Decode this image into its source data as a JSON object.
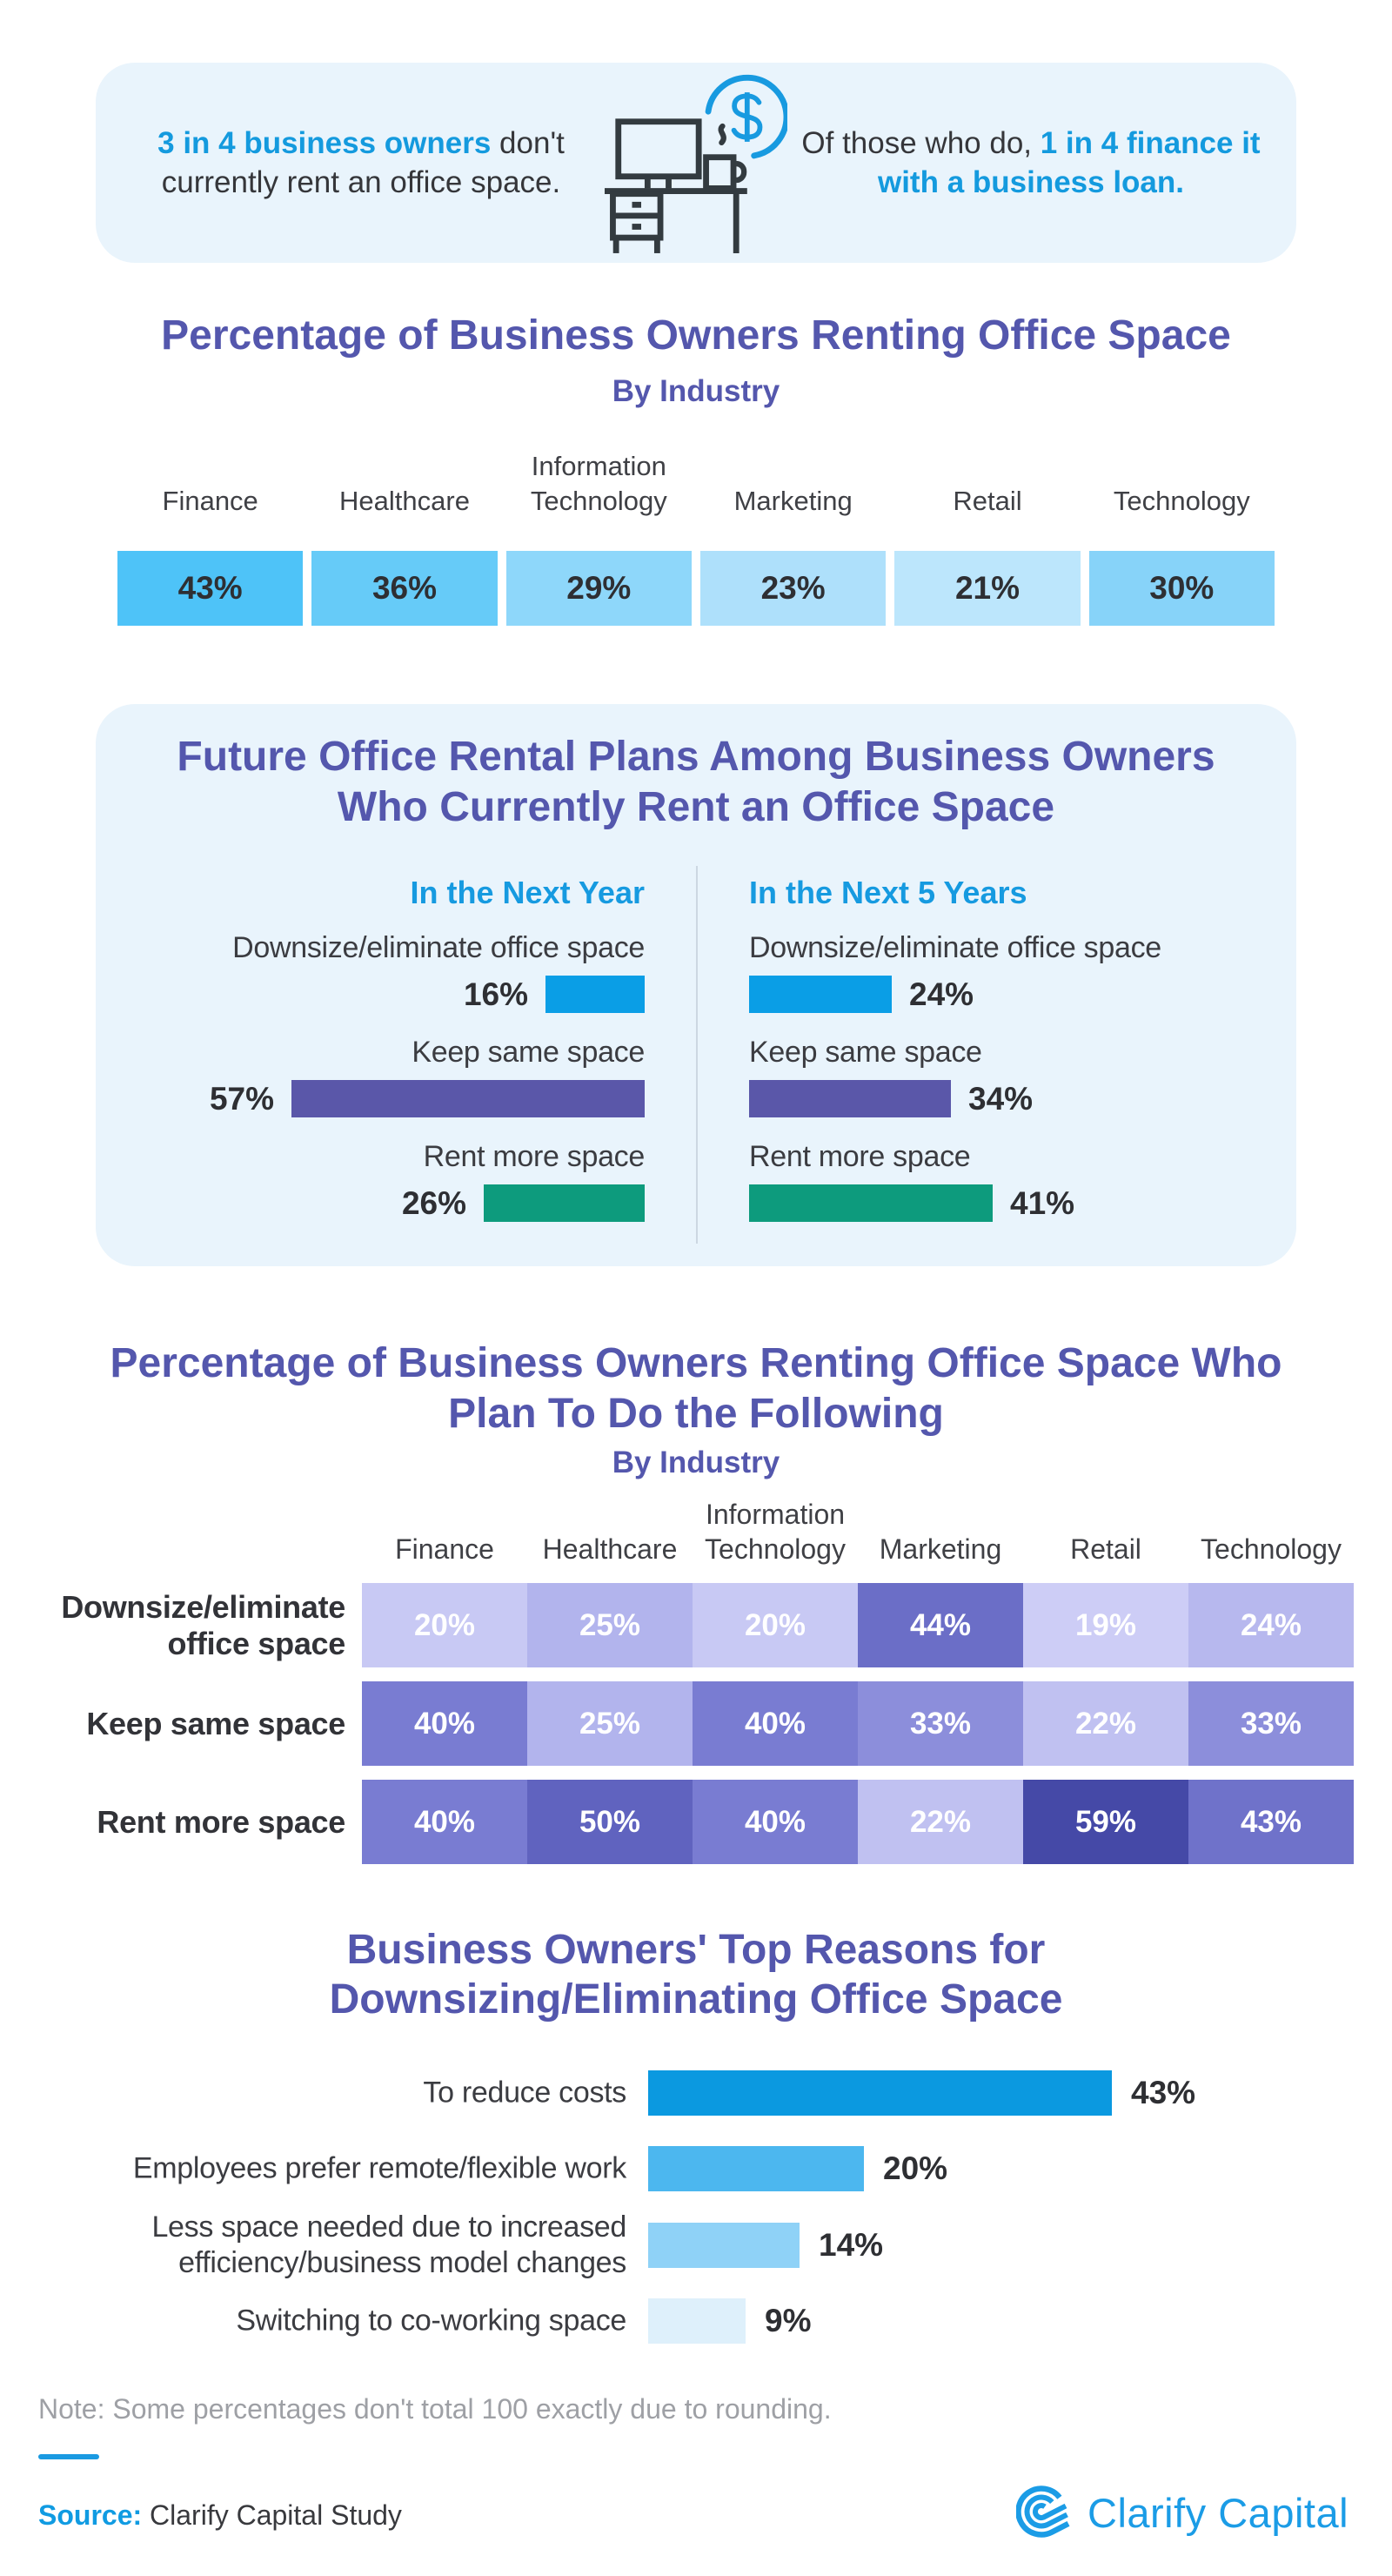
{
  "page": {
    "background": "#ffffff",
    "accent_blue": "#149ade",
    "title_purple": "#5457ad"
  },
  "banner": {
    "bg": "#e9f4fc",
    "icon": "desk-computer-money-icon",
    "left": {
      "highlight": "3 in 4 business owners",
      "rest_line1": " don't",
      "line2": "currently rent an office space."
    },
    "right": {
      "prefix": "Of those who do, ",
      "highlight_line1": "1 in 4 finance it",
      "highlight_line2": "with a business loan."
    }
  },
  "section_industry": {
    "title": "Percentage of Business Owners Renting Office Space",
    "subtitle": "By Industry",
    "items": [
      {
        "label": "Finance",
        "value": 43,
        "value_label": "43%",
        "color": "#4ec3f8"
      },
      {
        "label": "Healthcare",
        "value": 36,
        "value_label": "36%",
        "color": "#66cbf8"
      },
      {
        "label": "Information Technology",
        "value": 29,
        "value_label": "29%",
        "color": "#8ed7fa"
      },
      {
        "label": "Marketing",
        "value": 23,
        "value_label": "23%",
        "color": "#aee0fb"
      },
      {
        "label": "Retail",
        "value": 21,
        "value_label": "21%",
        "color": "#bce6fc"
      },
      {
        "label": "Technology",
        "value": 30,
        "value_label": "30%",
        "color": "#87d3f9"
      }
    ]
  },
  "section_plans": {
    "panel_bg": "#e9f4fc",
    "title_line1": "Future Office Rental Plans Among Business Owners",
    "title_line2": "Who Currently Rent an Office Space",
    "columns": [
      {
        "header": "In the Next Year",
        "rows": [
          {
            "label": "Downsize/eliminate office space",
            "value": 16,
            "value_label": "16%",
            "color": "#0a9ee6"
          },
          {
            "label": "Keep same space",
            "value": 57,
            "value_label": "57%",
            "color": "#5a57a9"
          },
          {
            "label": "Rent more space",
            "value": 26,
            "value_label": "26%",
            "color": "#0d9b7d"
          }
        ]
      },
      {
        "header": "In the Next 5 Years",
        "rows": [
          {
            "label": "Downsize/eliminate office space",
            "value": 24,
            "value_label": "24%",
            "color": "#0a9ee6"
          },
          {
            "label": "Keep same space",
            "value": 34,
            "value_label": "34%",
            "color": "#5a57a9"
          },
          {
            "label": "Rent more space",
            "value": 41,
            "value_label": "41%",
            "color": "#0d9b7d"
          }
        ]
      }
    ]
  },
  "section_matrix": {
    "title_line1": "Percentage of Business Owners Renting Office Space Who",
    "title_line2": "Plan To Do the Following",
    "subtitle": "By Industry",
    "columns": [
      "Finance",
      "Healthcare",
      "Information Technology",
      "Marketing",
      "Retail",
      "Technology"
    ],
    "rows": [
      {
        "label": "Downsize/eliminate office space",
        "values": [
          20,
          25,
          20,
          44,
          19,
          24
        ],
        "value_labels": [
          "20%",
          "25%",
          "20%",
          "44%",
          "19%",
          "24%"
        ]
      },
      {
        "label": "Keep same space",
        "values": [
          40,
          25,
          40,
          33,
          22,
          33
        ],
        "value_labels": [
          "40%",
          "25%",
          "40%",
          "33%",
          "22%",
          "33%"
        ]
      },
      {
        "label": "Rent more space",
        "values": [
          40,
          50,
          40,
          22,
          59,
          43
        ],
        "value_labels": [
          "40%",
          "50%",
          "40%",
          "22%",
          "59%",
          "43%"
        ]
      }
    ],
    "value_colors": {
      "19": "#cdcdf6",
      "20": "#c8c9f4",
      "22": "#c0c1f1",
      "24": "#b7b8ee",
      "25": "#b2b4ed",
      "33": "#8c8edb",
      "40": "#797cd2",
      "43": "#6f72ca",
      "44": "#6b6ec7",
      "50": "#6063bf",
      "59": "#4549a7"
    }
  },
  "section_reasons": {
    "title_line1": "Business Owners' Top Reasons for",
    "title_line2": "Downsizing/Eliminating Office Space",
    "items": [
      {
        "label": "To reduce costs",
        "label_lines": [
          "To reduce costs"
        ],
        "value": 43,
        "value_label": "43%",
        "color": "#0b99e0"
      },
      {
        "label": "Employees prefer remote/flexible work",
        "label_lines": [
          "Employees prefer remote/flexible work"
        ],
        "value": 20,
        "value_label": "20%",
        "color": "#4cb7ef"
      },
      {
        "label": "Less space needed due to increased efficiency/business model changes",
        "label_lines": [
          "Less space needed due to increased",
          "efficiency/business model changes"
        ],
        "value": 14,
        "value_label": "14%",
        "color": "#8fd2f7"
      },
      {
        "label": "Switching to co-working space",
        "label_lines": [
          "Switching to co-working space"
        ],
        "value": 9,
        "value_label": "9%",
        "color": "#def0fb"
      }
    ]
  },
  "footer": {
    "note": "Note: Some percentages don't total 100 exactly due to rounding.",
    "source_label": "Source:",
    "source_text": " Clarify Capital Study",
    "logo_text": "Clarify Capital",
    "logo_icon": "clarify-capital-logo"
  },
  "chart_data": [
    {
      "type": "bar",
      "title": "Percentage of Business Owners Renting Office Space",
      "subtitle": "By Industry",
      "categories": [
        "Finance",
        "Healthcare",
        "Information Technology",
        "Marketing",
        "Retail",
        "Technology"
      ],
      "values": [
        43,
        36,
        29,
        23,
        21,
        30
      ],
      "unit": "%",
      "xlabel": "",
      "ylabel": "",
      "notes": "rendered as equal-width labelled blocks shaded by value"
    },
    {
      "type": "bar",
      "title": "Future Office Rental Plans Among Business Owners Who Currently Rent an Office Space",
      "categories": [
        "Downsize/eliminate office space",
        "Keep same space",
        "Rent more space"
      ],
      "series": [
        {
          "name": "In the Next Year",
          "values": [
            16,
            57,
            26
          ]
        },
        {
          "name": "In the Next 5 Years",
          "values": [
            24,
            34,
            41
          ]
        }
      ],
      "unit": "%",
      "orientation": "horizontal",
      "series_colors": [
        "#0a9ee6",
        "#5a57a9",
        "#0d9b7d"
      ]
    },
    {
      "type": "heatmap",
      "title": "Percentage of Business Owners Renting Office Space Who Plan To Do the Following",
      "subtitle": "By Industry",
      "x_categories": [
        "Finance",
        "Healthcare",
        "Information Technology",
        "Marketing",
        "Retail",
        "Technology"
      ],
      "y_categories": [
        "Downsize/eliminate office space",
        "Keep same space",
        "Rent more space"
      ],
      "values": [
        [
          20,
          25,
          20,
          44,
          19,
          24
        ],
        [
          40,
          25,
          40,
          33,
          22,
          33
        ],
        [
          40,
          50,
          40,
          22,
          59,
          43
        ]
      ],
      "unit": "%"
    },
    {
      "type": "bar",
      "title": "Business Owners' Top Reasons for Downsizing/Eliminating Office Space",
      "categories": [
        "To reduce costs",
        "Employees prefer remote/flexible work",
        "Less space needed due to increased efficiency/business model changes",
        "Switching to co-working space"
      ],
      "values": [
        43,
        20,
        14,
        9
      ],
      "unit": "%",
      "orientation": "horizontal"
    }
  ]
}
